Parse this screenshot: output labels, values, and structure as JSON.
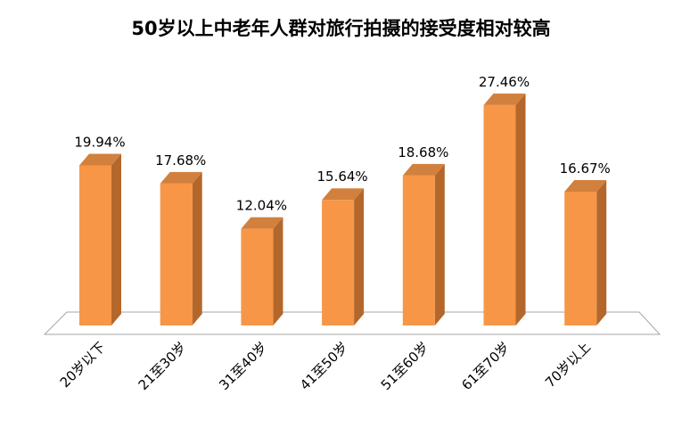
{
  "chart_data": {
    "type": "bar",
    "title": "50岁以上中老年人群对旅行拍摄的接受度相对较高",
    "categories": [
      "20岁以下",
      "21至30岁",
      "31至40岁",
      "41至50岁",
      "51至60岁",
      "61至70岁",
      "70岁以上"
    ],
    "values": [
      19.94,
      17.68,
      12.04,
      15.64,
      18.68,
      27.46,
      16.67
    ],
    "value_labels": [
      "19.94%",
      "17.68%",
      "12.04%",
      "15.64%",
      "18.68%",
      "27.46%",
      "16.67%"
    ],
    "xlabel": "",
    "ylabel": "",
    "ylim": [
      0,
      30
    ],
    "grid": false,
    "legend": "none",
    "style": "3d-column",
    "colors": {
      "bar_front": "#F79646",
      "bar_side": "#B4672B",
      "bar_top": "#D2803D",
      "floor_edge": "#A6A6A6"
    }
  }
}
